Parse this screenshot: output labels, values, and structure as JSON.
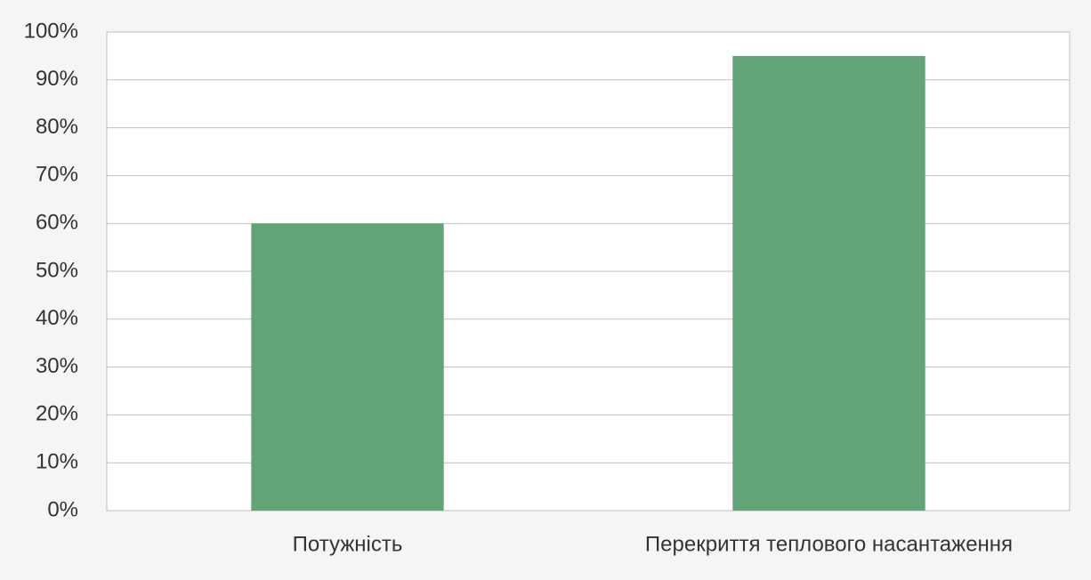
{
  "chart_data": {
    "type": "bar",
    "categories": [
      "Потужність",
      "Перекриття теплового насантаження"
    ],
    "values": [
      60,
      95
    ],
    "color": "#62a477",
    "ylim": [
      0,
      100
    ],
    "yticks": [
      {
        "value": 0,
        "label": "0%"
      },
      {
        "value": 10,
        "label": "10%"
      },
      {
        "value": 20,
        "label": "20%"
      },
      {
        "value": 30,
        "label": "30%"
      },
      {
        "value": 40,
        "label": "40%"
      },
      {
        "value": 50,
        "label": "50%"
      },
      {
        "value": 60,
        "label": "60%"
      },
      {
        "value": 70,
        "label": "70%"
      },
      {
        "value": 80,
        "label": "80%"
      },
      {
        "value": 90,
        "label": "90%"
      },
      {
        "value": 100,
        "label": "100%"
      }
    ],
    "grid": true
  }
}
